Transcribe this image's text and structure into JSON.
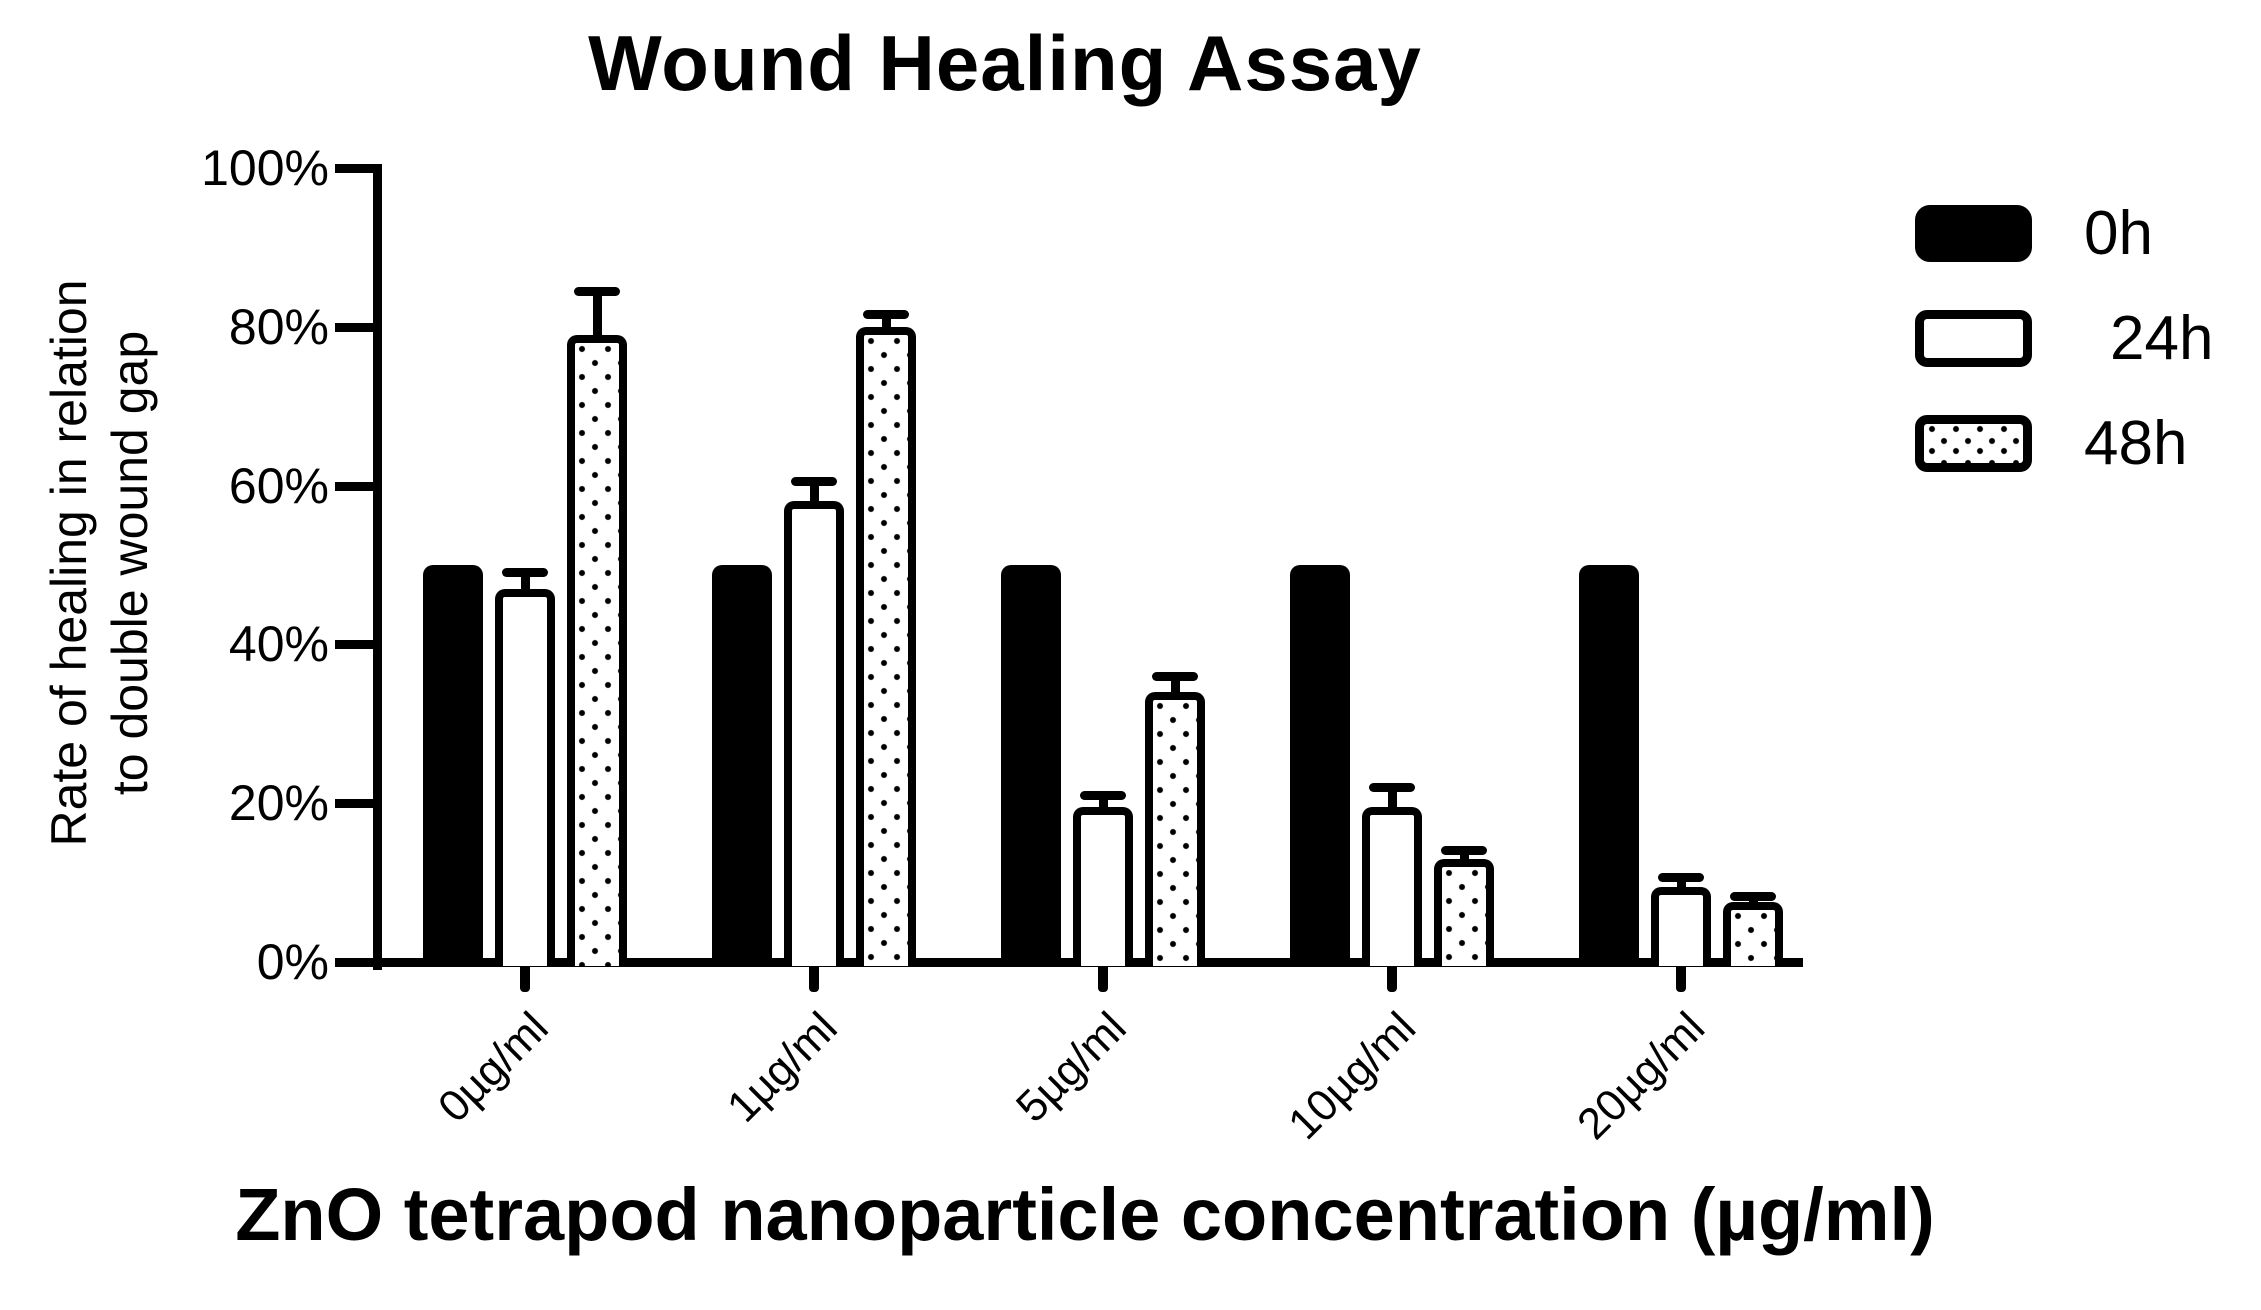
{
  "chart_data": {
    "type": "bar",
    "title": "Wound Healing Assay",
    "xlabel": "ZnO tetrapod nanoparticle concentration (µg/ml)",
    "ylabel_lines": [
      "Rate of healing in relation",
      "to double wound gap"
    ],
    "categories": [
      "0µg/ml",
      "1µg/ml",
      "5µg/ml",
      "10µg/ml",
      "20µg/ml"
    ],
    "y_ticks": [
      {
        "value": 0,
        "label": "0%"
      },
      {
        "value": 20,
        "label": "20%"
      },
      {
        "value": 40,
        "label": "40%"
      },
      {
        "value": 60,
        "label": "60%"
      },
      {
        "value": 80,
        "label": "80%"
      },
      {
        "value": 100,
        "label": "100%"
      }
    ],
    "ylim": [
      0,
      100
    ],
    "grid": false,
    "legend_position": "right",
    "series": [
      {
        "name": "0h",
        "pattern": "solid-black",
        "values": [
          50,
          50,
          50,
          50,
          50
        ],
        "errors_plus": [
          0,
          0,
          0,
          0,
          0
        ]
      },
      {
        "name": "24h",
        "pattern": "white",
        "values": [
          47,
          58,
          19.5,
          19.5,
          9.5
        ],
        "errors_plus": [
          2,
          2.5,
          1.5,
          2.5,
          1.2
        ]
      },
      {
        "name": "48h",
        "pattern": "dotted",
        "values": [
          79,
          80,
          34,
          13,
          7.5
        ],
        "errors_plus": [
          5.5,
          1.5,
          2,
          1,
          0.8
        ]
      }
    ],
    "colors": {
      "foreground": "#000000",
      "background": "#ffffff"
    }
  }
}
